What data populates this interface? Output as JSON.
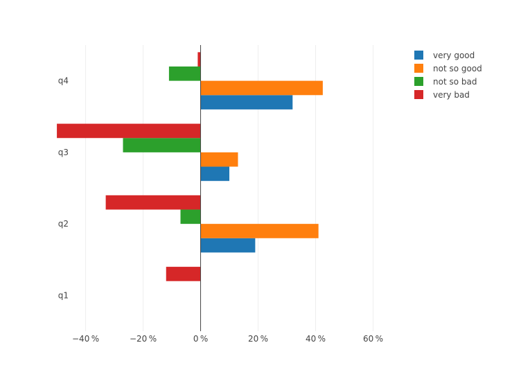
{
  "chart_data": {
    "type": "bar",
    "orientation": "horizontal",
    "categories": [
      "q1",
      "q2",
      "q3",
      "q4"
    ],
    "x_tick_labels": [
      "−40 %",
      "−20 %",
      "0 %",
      "20 %",
      "40 %",
      "60 %"
    ],
    "x_tick_values": [
      -40,
      -20,
      0,
      20,
      40,
      60
    ],
    "xlim": [
      -50.5,
      70
    ],
    "grid": true,
    "legend_position": "top-right",
    "series": [
      {
        "name": "very good",
        "color": "#1f77b4",
        "values": [
          0,
          19,
          10,
          32
        ]
      },
      {
        "name": "not so good",
        "color": "#ff7f0e",
        "values": [
          0,
          41,
          13,
          42.5
        ]
      },
      {
        "name": "not so bad",
        "color": "#2ca02c",
        "values": [
          0,
          -7,
          -27,
          -11
        ]
      },
      {
        "name": "very bad",
        "color": "#d62728",
        "values": [
          -12,
          -33,
          -50,
          -1
        ]
      }
    ]
  }
}
